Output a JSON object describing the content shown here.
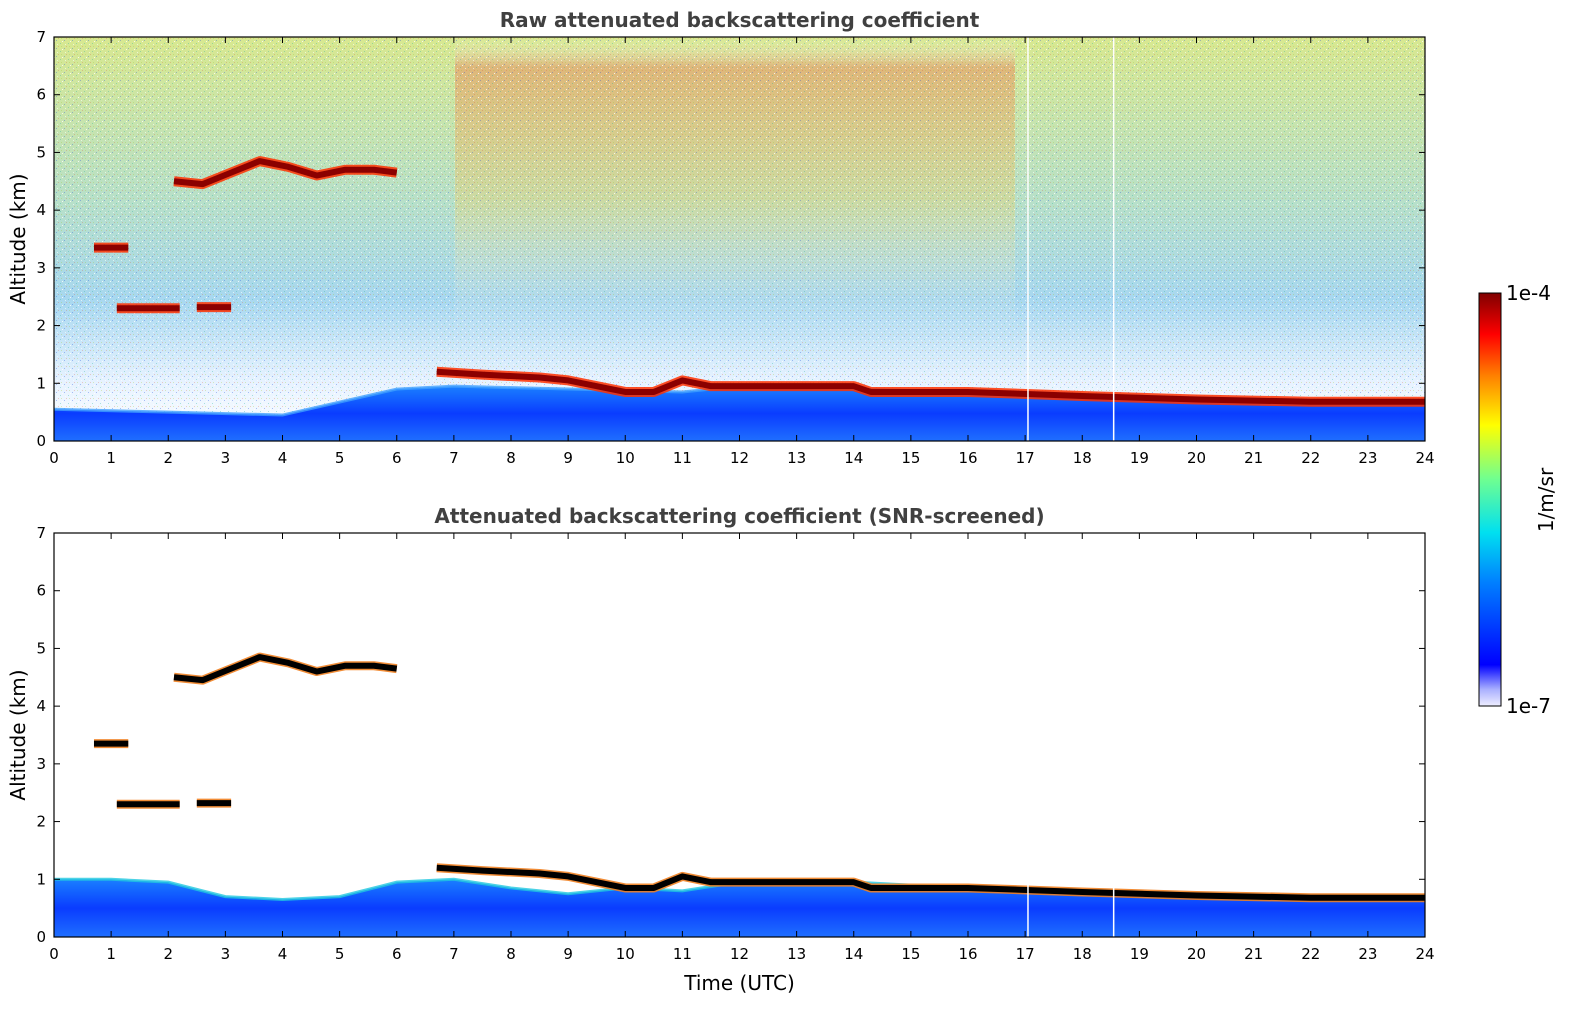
{
  "chart_data": [
    {
      "type": "heatmap",
      "title": "Raw attenuated backscattering coefficient",
      "xlabel": "",
      "ylabel": "Altitude (km)",
      "xlim": [
        0,
        24
      ],
      "ylim": [
        0,
        7
      ],
      "xticks": [
        0,
        1,
        2,
        3,
        4,
        5,
        6,
        7,
        8,
        9,
        10,
        11,
        12,
        13,
        14,
        15,
        16,
        17,
        18,
        19,
        20,
        21,
        22,
        23,
        24
      ],
      "yticks": [
        0,
        1,
        2,
        3,
        4,
        5,
        6,
        7
      ],
      "screened": false,
      "boundary_layer_top_km": {
        "x": [
          0,
          2,
          4,
          6,
          7,
          9,
          11,
          12,
          14,
          16,
          18,
          20,
          22,
          24
        ],
        "y": [
          0.55,
          0.5,
          0.45,
          0.9,
          0.95,
          0.9,
          0.85,
          0.95,
          0.9,
          0.85,
          0.8,
          0.75,
          0.7,
          0.7
        ]
      },
      "cloud_layers": [
        {
          "x": [
            2.1,
            2.6,
            3.1,
            3.6,
            4.1,
            4.6,
            5.1,
            5.6,
            6.0
          ],
          "y": [
            4.5,
            4.45,
            4.65,
            4.85,
            4.75,
            4.6,
            4.7,
            4.7,
            4.65
          ]
        },
        {
          "x": [
            0.7,
            1.3
          ],
          "y": [
            3.35,
            3.35
          ]
        },
        {
          "x": [
            1.1,
            2.2
          ],
          "y": [
            2.3,
            2.3
          ]
        },
        {
          "x": [
            2.5,
            3.1
          ],
          "y": [
            2.32,
            2.32
          ]
        },
        {
          "x": [
            6.7,
            7.5,
            8.5,
            9.0,
            9.5,
            10.0,
            10.5,
            11.0,
            11.5,
            12.0,
            13.0,
            14.0,
            14.3,
            16.0,
            18.0,
            20.0,
            22.0,
            24.0
          ],
          "y": [
            1.2,
            1.15,
            1.1,
            1.05,
            0.95,
            0.85,
            0.85,
            1.05,
            0.95,
            0.95,
            0.95,
            0.95,
            0.85,
            0.85,
            0.78,
            0.72,
            0.68,
            0.68
          ]
        }
      ],
      "data_gaps_hours": [
        17.05,
        18.55
      ],
      "colorbar": {
        "label": "1/m/sr",
        "min_label": "1e-7",
        "max_label": "1e-4",
        "colormap": "jet",
        "scale": "log"
      }
    },
    {
      "type": "heatmap",
      "title": "Attenuated backscattering coefficient (SNR-screened)",
      "xlabel": "Time (UTC)",
      "ylabel": "Altitude (km)",
      "xlim": [
        0,
        24
      ],
      "ylim": [
        0,
        7
      ],
      "xticks": [
        0,
        1,
        2,
        3,
        4,
        5,
        6,
        7,
        8,
        9,
        10,
        11,
        12,
        13,
        14,
        15,
        16,
        17,
        18,
        19,
        20,
        21,
        22,
        23,
        24
      ],
      "yticks": [
        0,
        1,
        2,
        3,
        4,
        5,
        6,
        7
      ],
      "screened": true,
      "boundary_layer_top_km": {
        "x": [
          0,
          1,
          2,
          3,
          4,
          5,
          6,
          7,
          8,
          9,
          10,
          11,
          12,
          13,
          14,
          16,
          18,
          20,
          22,
          24
        ],
        "y": [
          1.0,
          1.0,
          0.95,
          0.7,
          0.65,
          0.7,
          0.95,
          1.0,
          0.85,
          0.75,
          0.85,
          0.8,
          0.95,
          0.95,
          0.95,
          0.85,
          0.8,
          0.75,
          0.7,
          0.7
        ]
      },
      "cloud_layers": [
        {
          "x": [
            2.1,
            2.6,
            3.1,
            3.6,
            4.1,
            4.6,
            5.1,
            5.6,
            6.0
          ],
          "y": [
            4.5,
            4.45,
            4.65,
            4.85,
            4.75,
            4.6,
            4.7,
            4.7,
            4.65
          ]
        },
        {
          "x": [
            0.7,
            1.3
          ],
          "y": [
            3.35,
            3.35
          ]
        },
        {
          "x": [
            1.1,
            2.2
          ],
          "y": [
            2.3,
            2.3
          ]
        },
        {
          "x": [
            2.5,
            3.1
          ],
          "y": [
            2.32,
            2.32
          ]
        },
        {
          "x": [
            6.7,
            7.5,
            8.5,
            9.0,
            9.5,
            10.0,
            10.5,
            11.0,
            11.5,
            12.0,
            13.0,
            14.0,
            14.3,
            16.0,
            18.0,
            20.0,
            22.0,
            24.0
          ],
          "y": [
            1.2,
            1.15,
            1.1,
            1.05,
            0.95,
            0.85,
            0.85,
            1.05,
            0.95,
            0.95,
            0.95,
            0.95,
            0.85,
            0.85,
            0.78,
            0.72,
            0.68,
            0.68
          ]
        }
      ],
      "data_gaps_hours": [
        17.05,
        18.55
      ],
      "colorbar": {
        "label": "1/m/sr",
        "min_label": "1e-7",
        "max_label": "1e-4",
        "colormap": "jet",
        "scale": "log"
      }
    }
  ],
  "colorbar": {
    "label": "1/m/sr",
    "min_label": "1e-7",
    "max_label": "1e-4"
  },
  "colors": {
    "cloud_core_raw": "#8b0000",
    "cloud_core_screened": "#000000",
    "title": "#404040"
  }
}
